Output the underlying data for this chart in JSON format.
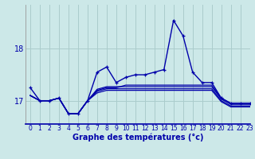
{
  "xlabel": "Graphe des températures (°c)",
  "bg_color": "#cce8e8",
  "line_color": "#0000aa",
  "grid_color": "#aacccc",
  "xlim": [
    -0.5,
    23
  ],
  "ylim": [
    16.55,
    18.85
  ],
  "yticks": [
    17,
    18
  ],
  "xticks": [
    0,
    1,
    2,
    3,
    4,
    5,
    6,
    7,
    8,
    9,
    10,
    11,
    12,
    13,
    14,
    15,
    16,
    17,
    18,
    19,
    20,
    21,
    22,
    23
  ],
  "main_series": [
    17.25,
    17.0,
    17.0,
    17.05,
    16.75,
    16.75,
    17.0,
    17.55,
    17.65,
    17.35,
    17.45,
    17.5,
    17.5,
    17.55,
    17.6,
    18.55,
    18.25,
    17.55,
    17.35,
    17.35,
    17.05,
    16.95,
    16.95,
    16.95
  ],
  "flat_lines": [
    [
      17.1,
      17.0,
      17.0,
      17.05,
      16.75,
      16.75,
      17.0,
      17.2,
      17.25,
      17.25,
      17.3,
      17.3,
      17.3,
      17.3,
      17.3,
      17.3,
      17.3,
      17.3,
      17.3,
      17.3,
      17.05,
      16.95,
      16.95,
      16.95
    ],
    [
      17.1,
      17.0,
      17.0,
      17.05,
      16.75,
      16.75,
      17.0,
      17.22,
      17.27,
      17.27,
      17.27,
      17.27,
      17.27,
      17.27,
      17.27,
      17.27,
      17.27,
      17.27,
      17.27,
      17.27,
      17.03,
      16.93,
      16.93,
      16.93
    ],
    [
      17.1,
      17.0,
      17.0,
      17.05,
      16.75,
      16.75,
      17.0,
      17.18,
      17.23,
      17.23,
      17.23,
      17.23,
      17.23,
      17.23,
      17.23,
      17.23,
      17.23,
      17.23,
      17.23,
      17.23,
      17.0,
      16.9,
      16.9,
      16.9
    ],
    [
      17.1,
      17.0,
      17.0,
      17.05,
      16.75,
      16.75,
      17.0,
      17.15,
      17.2,
      17.2,
      17.2,
      17.2,
      17.2,
      17.2,
      17.2,
      17.2,
      17.2,
      17.2,
      17.2,
      17.2,
      16.98,
      16.88,
      16.88,
      16.88
    ]
  ],
  "hours": [
    0,
    1,
    2,
    3,
    4,
    5,
    6,
    7,
    8,
    9,
    10,
    11,
    12,
    13,
    14,
    15,
    16,
    17,
    18,
    19,
    20,
    21,
    22,
    23
  ]
}
